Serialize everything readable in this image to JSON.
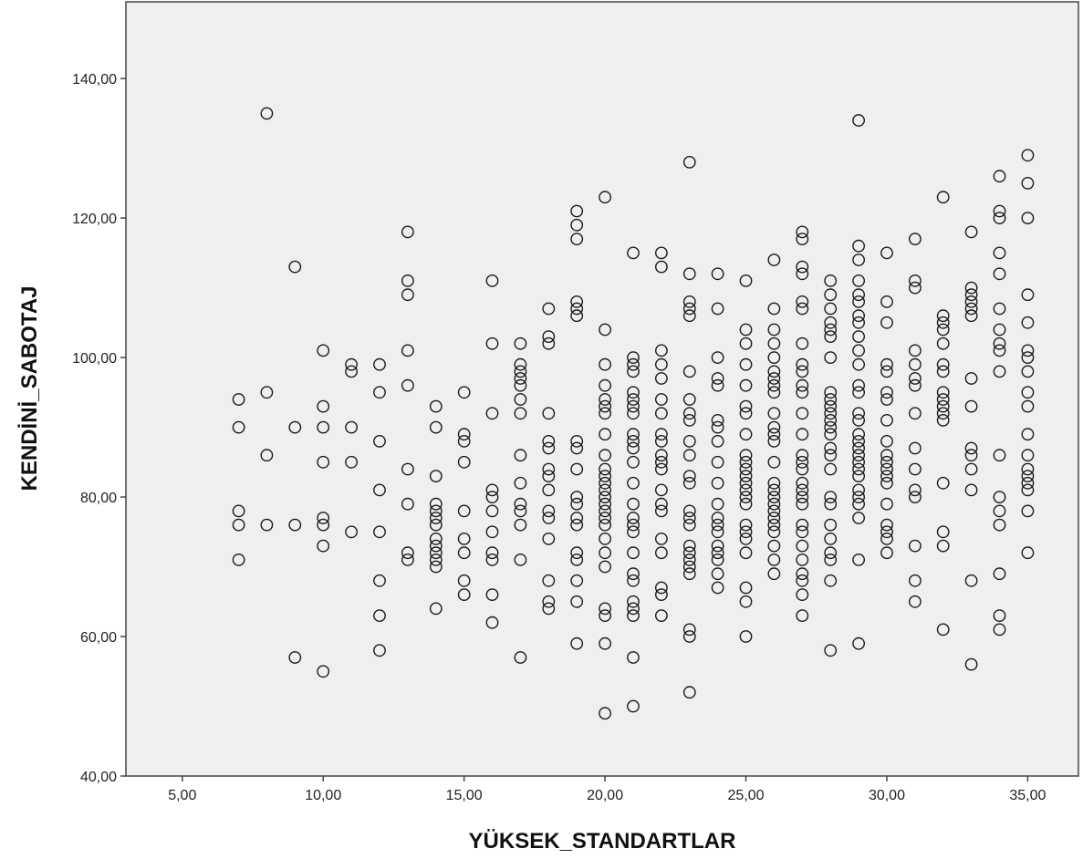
{
  "chart_data": {
    "type": "scatter",
    "xlabel": "YÜKSEK_STANDARTLAR",
    "ylabel": "KENDİNİ_SABOTAJ",
    "xlim": [
      3,
      36.8
    ],
    "ylim": [
      40,
      151
    ],
    "grid": false,
    "legend": "none",
    "x_ticks": [
      {
        "value": 5,
        "label": "5,00"
      },
      {
        "value": 10,
        "label": "10,00"
      },
      {
        "value": 15,
        "label": "15,00"
      },
      {
        "value": 20,
        "label": "20,00"
      },
      {
        "value": 25,
        "label": "25,00"
      },
      {
        "value": 30,
        "label": "30,00"
      },
      {
        "value": 35,
        "label": "35,00"
      }
    ],
    "y_ticks": [
      {
        "value": 40,
        "label": "40,00"
      },
      {
        "value": 60,
        "label": "60,00"
      },
      {
        "value": 80,
        "label": "80,00"
      },
      {
        "value": 100,
        "label": "100,00"
      },
      {
        "value": 120,
        "label": "120,00"
      },
      {
        "value": 140,
        "label": "140,00"
      }
    ],
    "colors": {
      "plot_background": "#efefef",
      "marker": "#1a1a1a",
      "axis": "#444444"
    },
    "points": [
      [
        7,
        94
      ],
      [
        7,
        90
      ],
      [
        7,
        78
      ],
      [
        7,
        76
      ],
      [
        7,
        71
      ],
      [
        8,
        135
      ],
      [
        8,
        95
      ],
      [
        8,
        86
      ],
      [
        8,
        76
      ],
      [
        9,
        113
      ],
      [
        9,
        90
      ],
      [
        9,
        76
      ],
      [
        9,
        57
      ],
      [
        10,
        101
      ],
      [
        10,
        93
      ],
      [
        10,
        90
      ],
      [
        10,
        85
      ],
      [
        10,
        77
      ],
      [
        10,
        76
      ],
      [
        10,
        73
      ],
      [
        10,
        55
      ],
      [
        11,
        99
      ],
      [
        11,
        98
      ],
      [
        11,
        90
      ],
      [
        11,
        85
      ],
      [
        11,
        75
      ],
      [
        12,
        99
      ],
      [
        12,
        95
      ],
      [
        12,
        88
      ],
      [
        12,
        81
      ],
      [
        12,
        75
      ],
      [
        12,
        68
      ],
      [
        12,
        63
      ],
      [
        12,
        58
      ],
      [
        13,
        118
      ],
      [
        13,
        111
      ],
      [
        13,
        109
      ],
      [
        13,
        101
      ],
      [
        13,
        96
      ],
      [
        13,
        84
      ],
      [
        13,
        79
      ],
      [
        13,
        72
      ],
      [
        13,
        71
      ],
      [
        14,
        93
      ],
      [
        14,
        90
      ],
      [
        14,
        83
      ],
      [
        14,
        79
      ],
      [
        14,
        78
      ],
      [
        14,
        77
      ],
      [
        14,
        76
      ],
      [
        14,
        74
      ],
      [
        14,
        73
      ],
      [
        14,
        72
      ],
      [
        14,
        71
      ],
      [
        14,
        70
      ],
      [
        14,
        64
      ],
      [
        15,
        95
      ],
      [
        15,
        89
      ],
      [
        15,
        88
      ],
      [
        15,
        85
      ],
      [
        15,
        78
      ],
      [
        15,
        74
      ],
      [
        15,
        72
      ],
      [
        15,
        68
      ],
      [
        15,
        66
      ],
      [
        16,
        111
      ],
      [
        16,
        102
      ],
      [
        16,
        92
      ],
      [
        16,
        81
      ],
      [
        16,
        80
      ],
      [
        16,
        78
      ],
      [
        16,
        75
      ],
      [
        16,
        72
      ],
      [
        16,
        71
      ],
      [
        16,
        66
      ],
      [
        16,
        62
      ],
      [
        17,
        102
      ],
      [
        17,
        99
      ],
      [
        17,
        98
      ],
      [
        17,
        97
      ],
      [
        17,
        96
      ],
      [
        17,
        94
      ],
      [
        17,
        92
      ],
      [
        17,
        86
      ],
      [
        17,
        82
      ],
      [
        17,
        79
      ],
      [
        17,
        78
      ],
      [
        17,
        76
      ],
      [
        17,
        71
      ],
      [
        17,
        57
      ],
      [
        18,
        107
      ],
      [
        18,
        103
      ],
      [
        18,
        102
      ],
      [
        18,
        92
      ],
      [
        18,
        88
      ],
      [
        18,
        87
      ],
      [
        18,
        84
      ],
      [
        18,
        83
      ],
      [
        18,
        81
      ],
      [
        18,
        78
      ],
      [
        18,
        77
      ],
      [
        18,
        74
      ],
      [
        18,
        68
      ],
      [
        18,
        65
      ],
      [
        18,
        64
      ],
      [
        19,
        121
      ],
      [
        19,
        119
      ],
      [
        19,
        117
      ],
      [
        19,
        108
      ],
      [
        19,
        107
      ],
      [
        19,
        106
      ],
      [
        19,
        88
      ],
      [
        19,
        87
      ],
      [
        19,
        84
      ],
      [
        19,
        80
      ],
      [
        19,
        79
      ],
      [
        19,
        77
      ],
      [
        19,
        76
      ],
      [
        19,
        72
      ],
      [
        19,
        71
      ],
      [
        19,
        68
      ],
      [
        19,
        65
      ],
      [
        19,
        59
      ],
      [
        20,
        123
      ],
      [
        20,
        104
      ],
      [
        20,
        99
      ],
      [
        20,
        96
      ],
      [
        20,
        94
      ],
      [
        20,
        93
      ],
      [
        20,
        92
      ],
      [
        20,
        89
      ],
      [
        20,
        86
      ],
      [
        20,
        84
      ],
      [
        20,
        83
      ],
      [
        20,
        82
      ],
      [
        20,
        81
      ],
      [
        20,
        80
      ],
      [
        20,
        79
      ],
      [
        20,
        78
      ],
      [
        20,
        77
      ],
      [
        20,
        76
      ],
      [
        20,
        74
      ],
      [
        20,
        72
      ],
      [
        20,
        70
      ],
      [
        20,
        64
      ],
      [
        20,
        63
      ],
      [
        20,
        59
      ],
      [
        20,
        49
      ],
      [
        21,
        115
      ],
      [
        21,
        100
      ],
      [
        21,
        99
      ],
      [
        21,
        98
      ],
      [
        21,
        95
      ],
      [
        21,
        94
      ],
      [
        21,
        93
      ],
      [
        21,
        92
      ],
      [
        21,
        89
      ],
      [
        21,
        88
      ],
      [
        21,
        87
      ],
      [
        21,
        85
      ],
      [
        21,
        82
      ],
      [
        21,
        79
      ],
      [
        21,
        77
      ],
      [
        21,
        76
      ],
      [
        21,
        75
      ],
      [
        21,
        72
      ],
      [
        21,
        69
      ],
      [
        21,
        68
      ],
      [
        21,
        65
      ],
      [
        21,
        64
      ],
      [
        21,
        63
      ],
      [
        21,
        57
      ],
      [
        21,
        50
      ],
      [
        22,
        115
      ],
      [
        22,
        113
      ],
      [
        22,
        101
      ],
      [
        22,
        99
      ],
      [
        22,
        97
      ],
      [
        22,
        94
      ],
      [
        22,
        92
      ],
      [
        22,
        89
      ],
      [
        22,
        88
      ],
      [
        22,
        86
      ],
      [
        22,
        85
      ],
      [
        22,
        84
      ],
      [
        22,
        81
      ],
      [
        22,
        79
      ],
      [
        22,
        78
      ],
      [
        22,
        74
      ],
      [
        22,
        72
      ],
      [
        22,
        67
      ],
      [
        22,
        66
      ],
      [
        22,
        63
      ],
      [
        23,
        128
      ],
      [
        23,
        112
      ],
      [
        23,
        108
      ],
      [
        23,
        107
      ],
      [
        23,
        106
      ],
      [
        23,
        98
      ],
      [
        23,
        94
      ],
      [
        23,
        92
      ],
      [
        23,
        91
      ],
      [
        23,
        88
      ],
      [
        23,
        86
      ],
      [
        23,
        83
      ],
      [
        23,
        82
      ],
      [
        23,
        78
      ],
      [
        23,
        77
      ],
      [
        23,
        76
      ],
      [
        23,
        73
      ],
      [
        23,
        72
      ],
      [
        23,
        71
      ],
      [
        23,
        70
      ],
      [
        23,
        69
      ],
      [
        23,
        61
      ],
      [
        23,
        60
      ],
      [
        23,
        52
      ],
      [
        24,
        112
      ],
      [
        24,
        107
      ],
      [
        24,
        100
      ],
      [
        24,
        97
      ],
      [
        24,
        96
      ],
      [
        24,
        91
      ],
      [
        24,
        90
      ],
      [
        24,
        88
      ],
      [
        24,
        85
      ],
      [
        24,
        82
      ],
      [
        24,
        79
      ],
      [
        24,
        77
      ],
      [
        24,
        76
      ],
      [
        24,
        75
      ],
      [
        24,
        73
      ],
      [
        24,
        72
      ],
      [
        24,
        71
      ],
      [
        24,
        69
      ],
      [
        24,
        67
      ],
      [
        25,
        111
      ],
      [
        25,
        104
      ],
      [
        25,
        102
      ],
      [
        25,
        99
      ],
      [
        25,
        96
      ],
      [
        25,
        93
      ],
      [
        25,
        92
      ],
      [
        25,
        89
      ],
      [
        25,
        86
      ],
      [
        25,
        85
      ],
      [
        25,
        84
      ],
      [
        25,
        83
      ],
      [
        25,
        82
      ],
      [
        25,
        81
      ],
      [
        25,
        80
      ],
      [
        25,
        79
      ],
      [
        25,
        76
      ],
      [
        25,
        75
      ],
      [
        25,
        74
      ],
      [
        25,
        72
      ],
      [
        25,
        67
      ],
      [
        25,
        65
      ],
      [
        25,
        60
      ],
      [
        26,
        114
      ],
      [
        26,
        107
      ],
      [
        26,
        104
      ],
      [
        26,
        102
      ],
      [
        26,
        100
      ],
      [
        26,
        98
      ],
      [
        26,
        97
      ],
      [
        26,
        96
      ],
      [
        26,
        95
      ],
      [
        26,
        92
      ],
      [
        26,
        90
      ],
      [
        26,
        89
      ],
      [
        26,
        88
      ],
      [
        26,
        85
      ],
      [
        26,
        82
      ],
      [
        26,
        81
      ],
      [
        26,
        80
      ],
      [
        26,
        79
      ],
      [
        26,
        78
      ],
      [
        26,
        77
      ],
      [
        26,
        76
      ],
      [
        26,
        75
      ],
      [
        26,
        73
      ],
      [
        26,
        71
      ],
      [
        26,
        69
      ],
      [
        27,
        118
      ],
      [
        27,
        117
      ],
      [
        27,
        113
      ],
      [
        27,
        112
      ],
      [
        27,
        108
      ],
      [
        27,
        107
      ],
      [
        27,
        102
      ],
      [
        27,
        99
      ],
      [
        27,
        98
      ],
      [
        27,
        96
      ],
      [
        27,
        95
      ],
      [
        27,
        92
      ],
      [
        27,
        89
      ],
      [
        27,
        86
      ],
      [
        27,
        85
      ],
      [
        27,
        84
      ],
      [
        27,
        82
      ],
      [
        27,
        81
      ],
      [
        27,
        80
      ],
      [
        27,
        79
      ],
      [
        27,
        76
      ],
      [
        27,
        75
      ],
      [
        27,
        73
      ],
      [
        27,
        71
      ],
      [
        27,
        69
      ],
      [
        27,
        68
      ],
      [
        27,
        66
      ],
      [
        27,
        63
      ],
      [
        28,
        111
      ],
      [
        28,
        109
      ],
      [
        28,
        107
      ],
      [
        28,
        105
      ],
      [
        28,
        104
      ],
      [
        28,
        103
      ],
      [
        28,
        100
      ],
      [
        28,
        95
      ],
      [
        28,
        94
      ],
      [
        28,
        93
      ],
      [
        28,
        92
      ],
      [
        28,
        91
      ],
      [
        28,
        90
      ],
      [
        28,
        89
      ],
      [
        28,
        87
      ],
      [
        28,
        86
      ],
      [
        28,
        84
      ],
      [
        28,
        80
      ],
      [
        28,
        79
      ],
      [
        28,
        76
      ],
      [
        28,
        74
      ],
      [
        28,
        72
      ],
      [
        28,
        71
      ],
      [
        28,
        68
      ],
      [
        28,
        58
      ],
      [
        29,
        134
      ],
      [
        29,
        116
      ],
      [
        29,
        114
      ],
      [
        29,
        111
      ],
      [
        29,
        109
      ],
      [
        29,
        108
      ],
      [
        29,
        106
      ],
      [
        29,
        105
      ],
      [
        29,
        103
      ],
      [
        29,
        101
      ],
      [
        29,
        99
      ],
      [
        29,
        96
      ],
      [
        29,
        95
      ],
      [
        29,
        92
      ],
      [
        29,
        91
      ],
      [
        29,
        89
      ],
      [
        29,
        88
      ],
      [
        29,
        87
      ],
      [
        29,
        86
      ],
      [
        29,
        85
      ],
      [
        29,
        84
      ],
      [
        29,
        83
      ],
      [
        29,
        81
      ],
      [
        29,
        80
      ],
      [
        29,
        79
      ],
      [
        29,
        77
      ],
      [
        29,
        71
      ],
      [
        29,
        59
      ],
      [
        30,
        115
      ],
      [
        30,
        108
      ],
      [
        30,
        105
      ],
      [
        30,
        99
      ],
      [
        30,
        98
      ],
      [
        30,
        95
      ],
      [
        30,
        94
      ],
      [
        30,
        91
      ],
      [
        30,
        88
      ],
      [
        30,
        86
      ],
      [
        30,
        85
      ],
      [
        30,
        84
      ],
      [
        30,
        83
      ],
      [
        30,
        82
      ],
      [
        30,
        79
      ],
      [
        30,
        76
      ],
      [
        30,
        75
      ],
      [
        30,
        74
      ],
      [
        30,
        72
      ],
      [
        31,
        117
      ],
      [
        31,
        111
      ],
      [
        31,
        110
      ],
      [
        31,
        101
      ],
      [
        31,
        99
      ],
      [
        31,
        97
      ],
      [
        31,
        96
      ],
      [
        31,
        92
      ],
      [
        31,
        87
      ],
      [
        31,
        84
      ],
      [
        31,
        81
      ],
      [
        31,
        80
      ],
      [
        31,
        73
      ],
      [
        31,
        68
      ],
      [
        31,
        65
      ],
      [
        32,
        123
      ],
      [
        32,
        106
      ],
      [
        32,
        105
      ],
      [
        32,
        104
      ],
      [
        32,
        102
      ],
      [
        32,
        99
      ],
      [
        32,
        98
      ],
      [
        32,
        95
      ],
      [
        32,
        94
      ],
      [
        32,
        93
      ],
      [
        32,
        92
      ],
      [
        32,
        91
      ],
      [
        32,
        82
      ],
      [
        32,
        75
      ],
      [
        32,
        73
      ],
      [
        32,
        61
      ],
      [
        33,
        118
      ],
      [
        33,
        110
      ],
      [
        33,
        109
      ],
      [
        33,
        108
      ],
      [
        33,
        107
      ],
      [
        33,
        106
      ],
      [
        33,
        97
      ],
      [
        33,
        93
      ],
      [
        33,
        87
      ],
      [
        33,
        86
      ],
      [
        33,
        84
      ],
      [
        33,
        81
      ],
      [
        33,
        68
      ],
      [
        33,
        56
      ],
      [
        34,
        126
      ],
      [
        34,
        121
      ],
      [
        34,
        120
      ],
      [
        34,
        115
      ],
      [
        34,
        112
      ],
      [
        34,
        107
      ],
      [
        34,
        104
      ],
      [
        34,
        102
      ],
      [
        34,
        101
      ],
      [
        34,
        98
      ],
      [
        34,
        86
      ],
      [
        34,
        80
      ],
      [
        34,
        78
      ],
      [
        34,
        76
      ],
      [
        34,
        69
      ],
      [
        34,
        63
      ],
      [
        34,
        61
      ],
      [
        35,
        129
      ],
      [
        35,
        125
      ],
      [
        35,
        120
      ],
      [
        35,
        109
      ],
      [
        35,
        105
      ],
      [
        35,
        101
      ],
      [
        35,
        100
      ],
      [
        35,
        98
      ],
      [
        35,
        95
      ],
      [
        35,
        93
      ],
      [
        35,
        89
      ],
      [
        35,
        86
      ],
      [
        35,
        84
      ],
      [
        35,
        83
      ],
      [
        35,
        82
      ],
      [
        35,
        81
      ],
      [
        35,
        78
      ],
      [
        35,
        72
      ]
    ]
  }
}
